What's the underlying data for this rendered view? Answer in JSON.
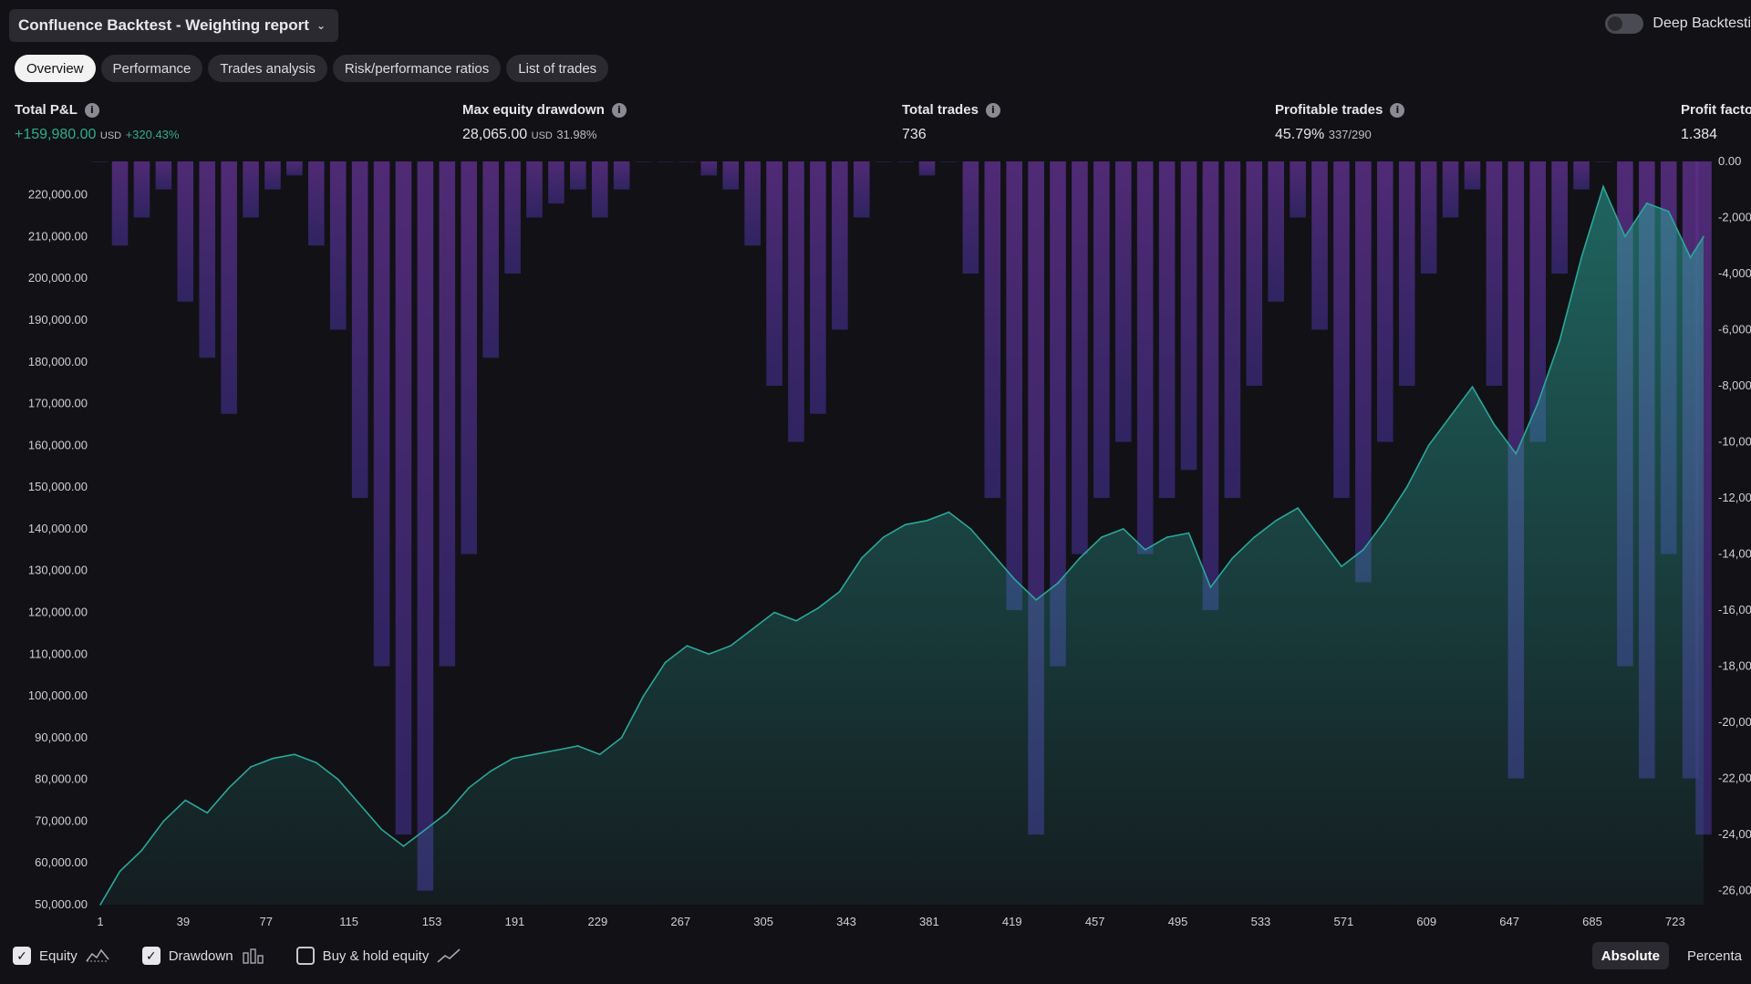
{
  "header": {
    "title": "Confluence Backtest - Weighting report",
    "deep_backtest_label": "Deep Backtesti"
  },
  "tabs": [
    {
      "label": "Overview",
      "active": true
    },
    {
      "label": "Performance",
      "active": false
    },
    {
      "label": "Trades analysis",
      "active": false
    },
    {
      "label": "Risk/performance ratios",
      "active": false
    },
    {
      "label": "List of trades",
      "active": false
    }
  ],
  "metrics": {
    "total_pnl": {
      "label": "Total P&L",
      "value": "+159,980.00",
      "unit": "USD",
      "sub": "+320.43%"
    },
    "max_drawdown": {
      "label": "Max equity drawdown",
      "value": "28,065.00",
      "unit": "USD",
      "sub": "31.98%"
    },
    "total_trades": {
      "label": "Total trades",
      "value": "736"
    },
    "profitable_trades": {
      "label": "Profitable trades",
      "value": "45.79%",
      "sub": "337/290"
    },
    "profit_factor": {
      "label": "Profit facto",
      "value": "1.384"
    }
  },
  "legend": {
    "equity_label": "Equity",
    "drawdown_label": "Drawdown",
    "buyhold_label": "Buy & hold equity",
    "equity_checked": true,
    "drawdown_checked": true,
    "buyhold_checked": false
  },
  "scale": {
    "absolute_label": "Absolute",
    "percent_label": "Percenta"
  },
  "colors": {
    "equity": "#2aa89a",
    "drawdown": "#4a2a6e",
    "positive": "#2fae8a",
    "background": "#121116"
  },
  "chart_data": {
    "type": "area",
    "title": "",
    "x_ticks": [
      "1",
      "39",
      "77",
      "115",
      "153",
      "191",
      "229",
      "267",
      "305",
      "343",
      "381",
      "419",
      "457",
      "495",
      "533",
      "571",
      "609",
      "647",
      "685",
      "723"
    ],
    "left_axis_ticks": [
      "220,000.00",
      "210,000.00",
      "200,000.00",
      "190,000.00",
      "180,000.00",
      "170,000.00",
      "160,000.00",
      "150,000.00",
      "140,000.00",
      "130,000.00",
      "120,000.00",
      "110,000.00",
      "100,000.00",
      "90,000.00",
      "80,000.00",
      "70,000.00",
      "60,000.00",
      "50,000.00"
    ],
    "right_axis_ticks": [
      "0.00",
      "-2,000",
      "-4,000",
      "-6,000",
      "-8,000",
      "-10,000",
      "-12,000",
      "-14,000",
      "-16,000",
      "-18,000",
      "-20,000",
      "-22,000",
      "-24,000",
      "-26,000"
    ],
    "left_ylim": [
      50000,
      228000
    ],
    "right_ylim": [
      -26500,
      0
    ],
    "xlim": [
      1,
      736
    ],
    "series": [
      {
        "name": "Equity",
        "x": [
          1,
          10,
          20,
          30,
          40,
          50,
          60,
          70,
          80,
          90,
          100,
          110,
          120,
          130,
          140,
          150,
          160,
          170,
          180,
          190,
          200,
          210,
          220,
          230,
          240,
          250,
          260,
          270,
          280,
          290,
          300,
          310,
          320,
          330,
          340,
          350,
          360,
          370,
          380,
          390,
          400,
          410,
          420,
          430,
          440,
          450,
          460,
          470,
          480,
          490,
          500,
          510,
          520,
          530,
          540,
          550,
          560,
          570,
          580,
          590,
          600,
          610,
          620,
          630,
          640,
          650,
          660,
          670,
          680,
          690,
          700,
          710,
          720,
          730,
          736
        ],
        "values": [
          50000,
          58000,
          63000,
          70000,
          75000,
          72000,
          78000,
          83000,
          85000,
          86000,
          84000,
          80000,
          74000,
          68000,
          64000,
          68000,
          72000,
          78000,
          82000,
          85000,
          86000,
          87000,
          88000,
          86000,
          90000,
          100000,
          108000,
          112000,
          110000,
          112000,
          116000,
          120000,
          118000,
          121000,
          125000,
          133000,
          138000,
          141000,
          142000,
          144000,
          140000,
          134000,
          128000,
          123000,
          127000,
          133000,
          138000,
          140000,
          135000,
          138000,
          139000,
          126000,
          133000,
          138000,
          142000,
          145000,
          138000,
          131000,
          135000,
          142000,
          150000,
          160000,
          167000,
          174000,
          165000,
          158000,
          170000,
          185000,
          205000,
          222000,
          210000,
          218000,
          216000,
          205000,
          210000
        ]
      },
      {
        "name": "Drawdown",
        "x": [
          1,
          10,
          20,
          30,
          40,
          50,
          60,
          70,
          80,
          90,
          100,
          110,
          120,
          130,
          140,
          150,
          160,
          170,
          180,
          190,
          200,
          210,
          220,
          230,
          240,
          250,
          260,
          270,
          280,
          290,
          300,
          310,
          320,
          330,
          340,
          350,
          360,
          370,
          380,
          390,
          400,
          410,
          420,
          430,
          440,
          450,
          460,
          470,
          480,
          490,
          500,
          510,
          520,
          530,
          540,
          550,
          560,
          570,
          580,
          590,
          600,
          610,
          620,
          630,
          640,
          650,
          660,
          670,
          680,
          690,
          700,
          710,
          720,
          730,
          736
        ],
        "values": [
          0,
          -3000,
          -2000,
          -1000,
          -5000,
          -7000,
          -9000,
          -2000,
          -1000,
          -500,
          -3000,
          -6000,
          -12000,
          -18000,
          -24000,
          -26000,
          -18000,
          -14000,
          -7000,
          -4000,
          -2000,
          -1500,
          -1000,
          -2000,
          -1000,
          0,
          0,
          0,
          -500,
          -1000,
          -3000,
          -8000,
          -10000,
          -9000,
          -6000,
          -2000,
          0,
          0,
          -500,
          0,
          -4000,
          -12000,
          -16000,
          -24000,
          -18000,
          -14000,
          -12000,
          -10000,
          -14000,
          -12000,
          -11000,
          -16000,
          -12000,
          -8000,
          -5000,
          -2000,
          -6000,
          -12000,
          -15000,
          -10000,
          -8000,
          -4000,
          -2000,
          -1000,
          -8000,
          -22000,
          -10000,
          -4000,
          -1000,
          0,
          -18000,
          -22000,
          -14000,
          -22000,
          -24000
        ]
      }
    ],
    "legend": [
      "Equity",
      "Drawdown",
      "Buy & hold equity"
    ],
    "grid": false
  }
}
